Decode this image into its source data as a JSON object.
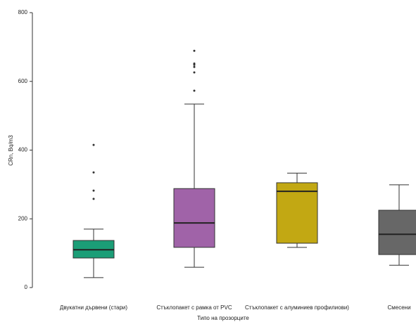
{
  "chart_data": {
    "type": "box",
    "y_label": "CRn, Bq/m3",
    "x_label": "Типо на прозорците",
    "categories": [
      "Двукатни дървени (стари)",
      "Стъклопакет с рамка от PVC",
      "Стъклопакет с алуминиев профилиови)",
      "Смесени"
    ],
    "colors": [
      "#1b9e77",
      "#a063a8",
      "#c2a813",
      "#676767"
    ],
    "boxes": [
      {
        "min": 29,
        "q1": 86,
        "median": 110,
        "q3": 137,
        "max": 170,
        "outliers": [
          258,
          282,
          335,
          415
        ]
      },
      {
        "min": 59,
        "q1": 117,
        "median": 188,
        "q3": 288,
        "max": 534,
        "outliers": [
          573,
          626,
          642,
          648,
          652,
          689
        ]
      },
      {
        "min": 117,
        "q1": 129,
        "median": 280,
        "q3": 305,
        "max": 333,
        "outliers": []
      },
      {
        "min": 65,
        "q1": 96,
        "median": 155,
        "q3": 225,
        "max": 299,
        "outliers": []
      }
    ],
    "ylim": [
      0,
      800
    ],
    "yticks": [
      0,
      200,
      400,
      600,
      800
    ]
  }
}
